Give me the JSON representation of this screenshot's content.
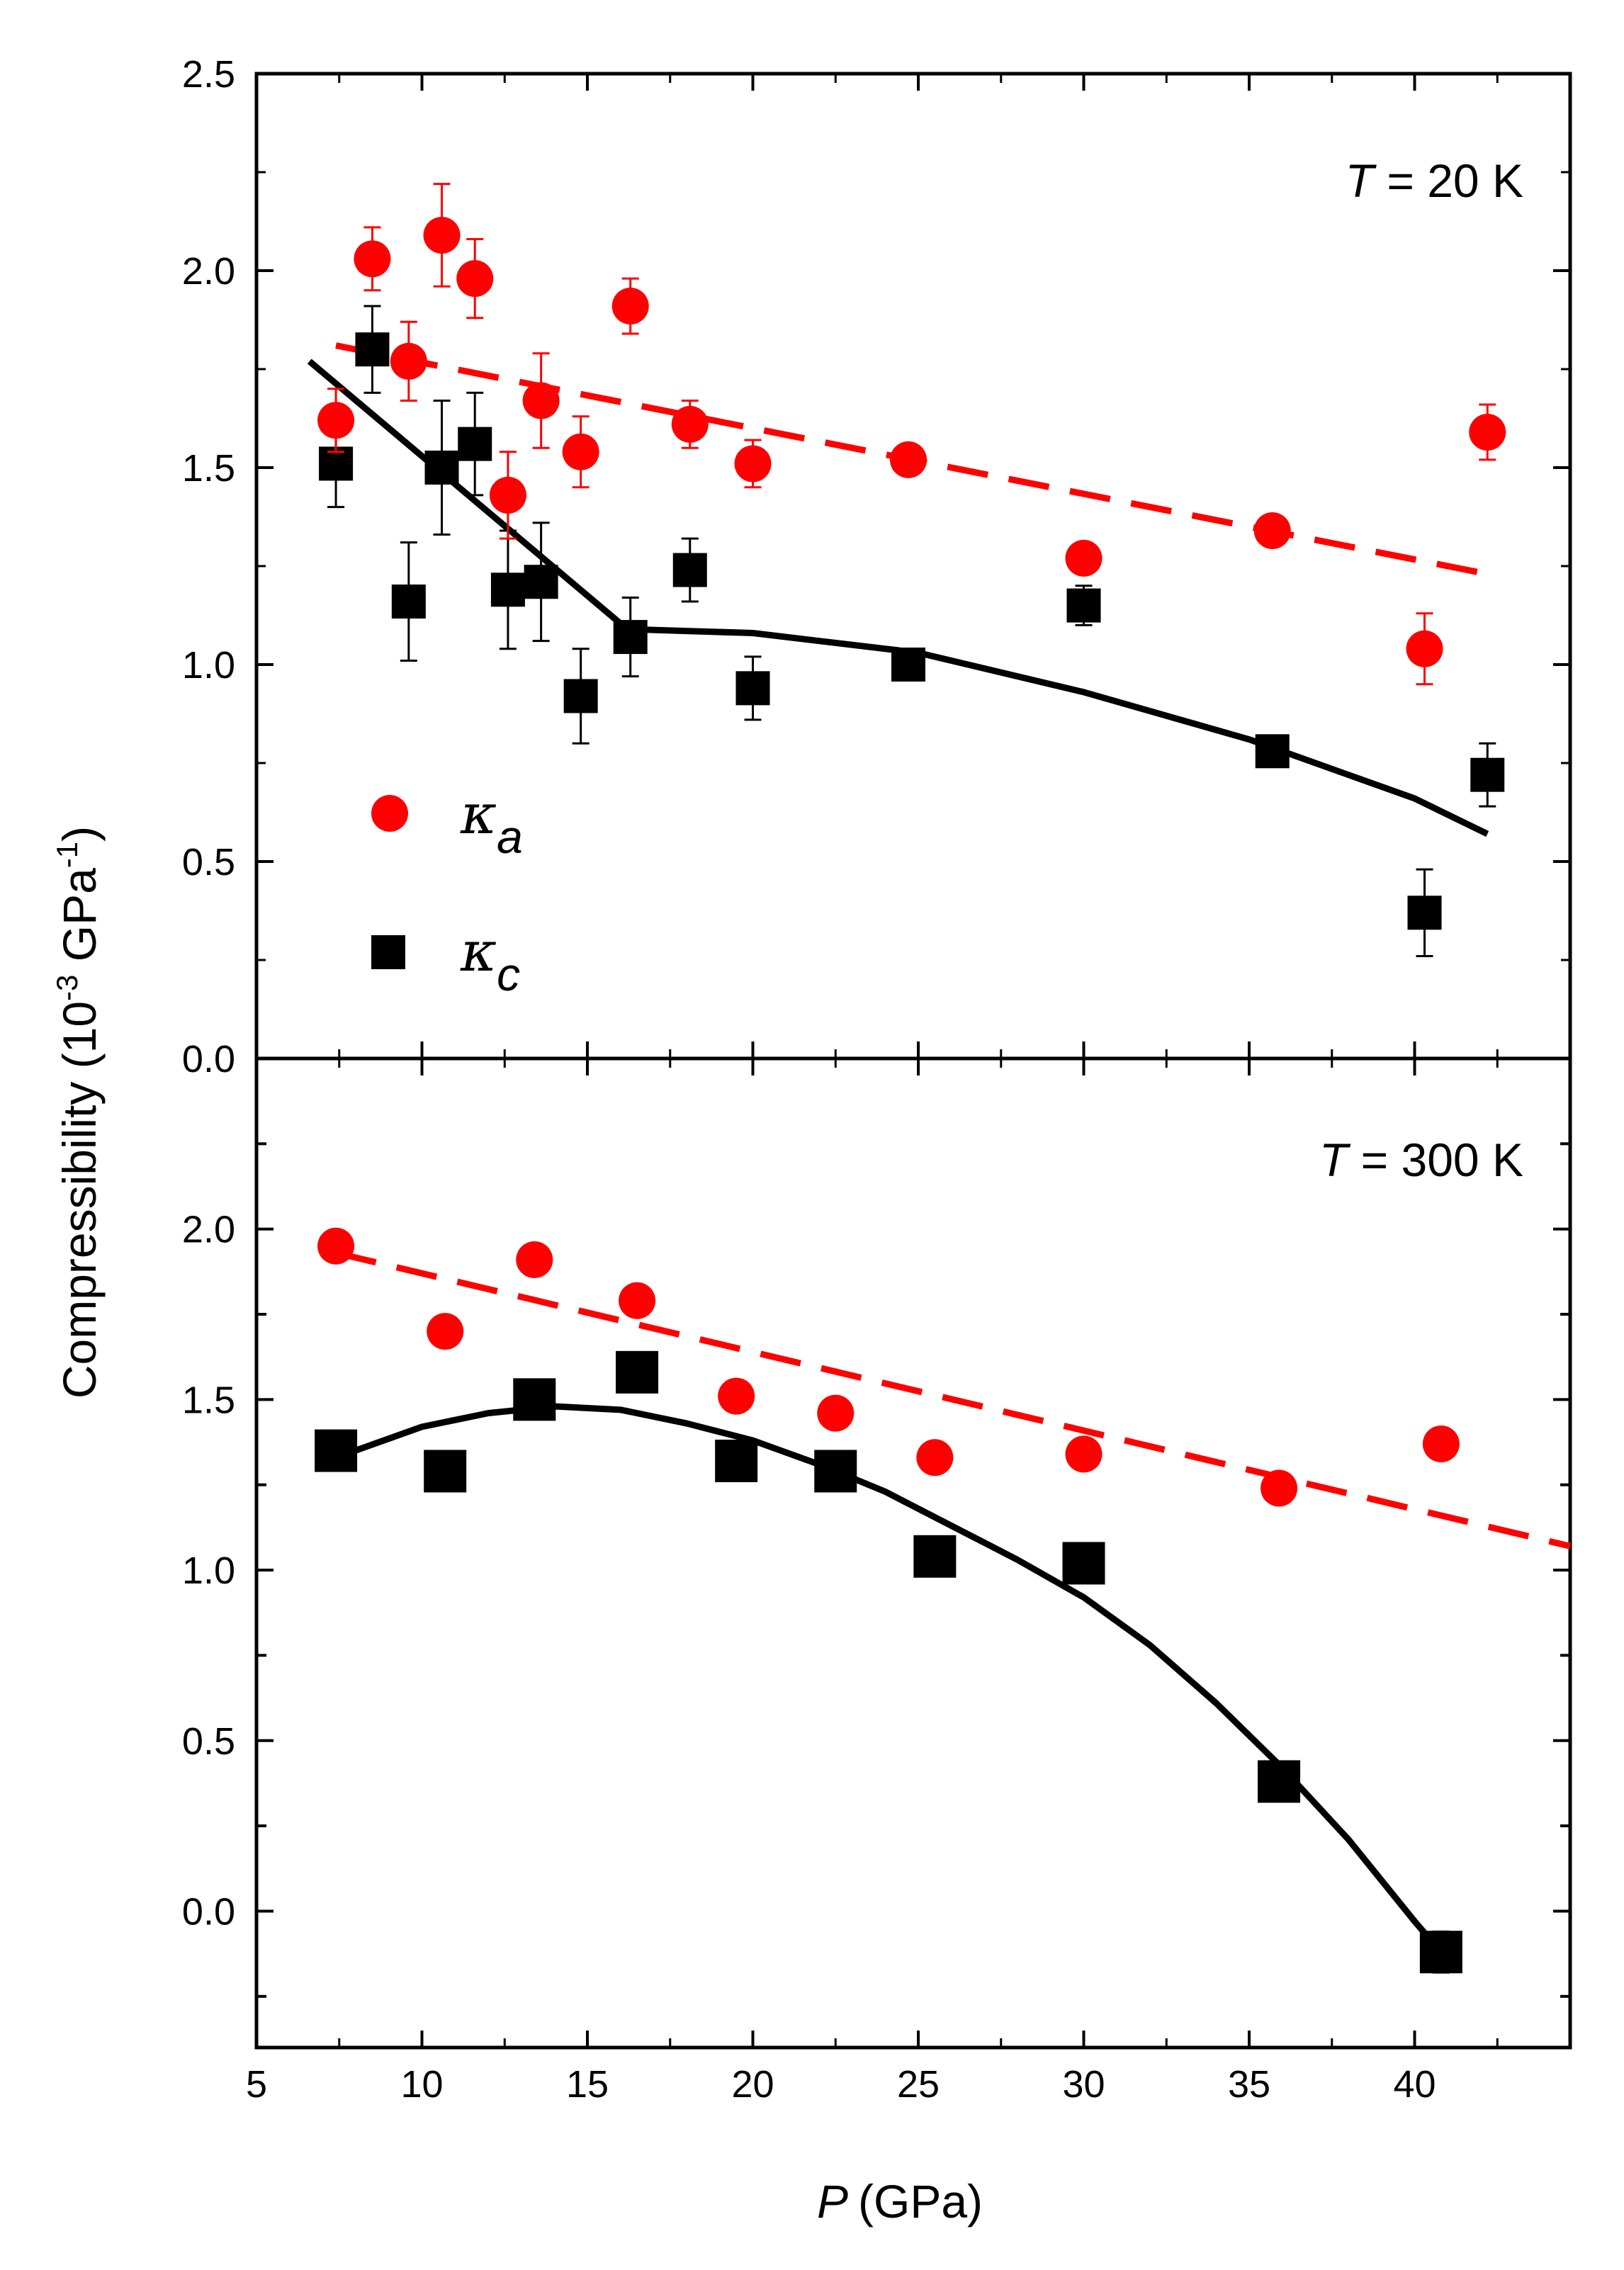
{
  "chart_data": {
    "type": "scatter",
    "xlabel_symbol": "P",
    "xlabel_unit": "(GPa)",
    "ylabel_main": "Compressibility (10",
    "ylabel_exp1": "-3",
    "ylabel_mid": " GPa",
    "ylabel_exp2": "-1",
    "ylabel_end": ")",
    "xlim": [
      5,
      44.7
    ],
    "x_ticks": [
      5,
      10,
      15,
      20,
      25,
      30,
      35,
      40
    ],
    "colors": {
      "kappa_a": "#ff0000",
      "kappa_c": "#000000"
    },
    "legend": {
      "kappa_a": {
        "symbol": "κ",
        "sub": "a"
      },
      "kappa_c": {
        "symbol": "κ",
        "sub": "c"
      }
    },
    "panels": [
      {
        "label_T": "T",
        "label_rest": " = 20 K",
        "ylim": [
          0,
          2.5
        ],
        "y_ticks": [
          0.0,
          0.5,
          1.0,
          1.5,
          2.0,
          2.5
        ],
        "y_tick_labels": [
          "0.0",
          "0.5",
          "1.0",
          "1.5",
          "2.0",
          "2.5"
        ],
        "series": [
          {
            "name": "kappa_a",
            "marker": "circle",
            "points": [
              {
                "x": 7.4,
                "y": 1.62,
                "err": 0.08
              },
              {
                "x": 8.5,
                "y": 2.03,
                "err": 0.08
              },
              {
                "x": 9.6,
                "y": 1.77,
                "err": 0.1
              },
              {
                "x": 10.6,
                "y": 2.09,
                "err": 0.13
              },
              {
                "x": 11.6,
                "y": 1.98,
                "err": 0.1
              },
              {
                "x": 12.6,
                "y": 1.43,
                "err": 0.11
              },
              {
                "x": 13.6,
                "y": 1.67,
                "err": 0.12
              },
              {
                "x": 14.8,
                "y": 1.54,
                "err": 0.09
              },
              {
                "x": 16.3,
                "y": 1.91,
                "err": 0.07
              },
              {
                "x": 18.1,
                "y": 1.61,
                "err": 0.06
              },
              {
                "x": 20.0,
                "y": 1.51,
                "err": 0.06
              },
              {
                "x": 24.7,
                "y": 1.52,
                "err": 0.0
              },
              {
                "x": 30.0,
                "y": 1.27,
                "err": 0.0
              },
              {
                "x": 35.7,
                "y": 1.34,
                "err": 0.0
              },
              {
                "x": 40.3,
                "y": 1.04,
                "err": 0.09
              },
              {
                "x": 42.2,
                "y": 1.59,
                "err": 0.07
              }
            ],
            "fit": {
              "style": "dashed",
              "x": [
                7.4,
                42.2
              ],
              "y": [
                1.81,
                1.23
              ]
            }
          },
          {
            "name": "kappa_c",
            "marker": "square",
            "points": [
              {
                "x": 7.4,
                "y": 1.51,
                "err": 0.11
              },
              {
                "x": 8.5,
                "y": 1.8,
                "err": 0.11
              },
              {
                "x": 9.6,
                "y": 1.16,
                "err": 0.15
              },
              {
                "x": 10.6,
                "y": 1.5,
                "err": 0.17
              },
              {
                "x": 11.6,
                "y": 1.56,
                "err": 0.13
              },
              {
                "x": 12.6,
                "y": 1.19,
                "err": 0.15
              },
              {
                "x": 13.6,
                "y": 1.21,
                "err": 0.15
              },
              {
                "x": 14.8,
                "y": 0.92,
                "err": 0.12
              },
              {
                "x": 16.3,
                "y": 1.07,
                "err": 0.1
              },
              {
                "x": 18.1,
                "y": 1.24,
                "err": 0.08
              },
              {
                "x": 20.0,
                "y": 0.94,
                "err": 0.08
              },
              {
                "x": 24.7,
                "y": 1.0,
                "err": 0.0
              },
              {
                "x": 30.0,
                "y": 1.15,
                "err": 0.05
              },
              {
                "x": 35.7,
                "y": 0.78,
                "err": 0.0
              },
              {
                "x": 40.3,
                "y": 0.37,
                "err": 0.11
              },
              {
                "x": 42.2,
                "y": 0.72,
                "err": 0.08
              }
            ],
            "fit": {
              "style": "solid",
              "x": [
                6.6,
                16.2,
                20,
                25,
                30,
                35,
                38,
                40,
                42.2
              ],
              "y": [
                1.77,
                1.09,
                1.08,
                1.03,
                0.93,
                0.81,
                0.72,
                0.66,
                0.57
              ]
            }
          }
        ]
      },
      {
        "label_T": "T",
        "label_rest": " = 300 K",
        "ylim": [
          -0.4,
          2.5
        ],
        "y_ticks": [
          -0.25,
          0.0,
          0.25,
          0.5,
          0.75,
          1.0,
          1.25,
          1.5,
          1.75,
          2.0,
          2.25
        ],
        "y_tick_labels": [
          "0.0",
          "0.5",
          "1.0",
          "1.5",
          "2.0"
        ],
        "y_tick_label_values": [
          0.0,
          0.5,
          1.0,
          1.5,
          2.0
        ],
        "series": [
          {
            "name": "kappa_a",
            "marker": "circle",
            "points": [
              {
                "x": 7.4,
                "y": 1.95
              },
              {
                "x": 10.7,
                "y": 1.7
              },
              {
                "x": 13.4,
                "y": 1.91
              },
              {
                "x": 16.5,
                "y": 1.79
              },
              {
                "x": 19.5,
                "y": 1.51
              },
              {
                "x": 22.5,
                "y": 1.46
              },
              {
                "x": 25.5,
                "y": 1.33
              },
              {
                "x": 30.0,
                "y": 1.34
              },
              {
                "x": 35.9,
                "y": 1.24
              },
              {
                "x": 40.8,
                "y": 1.37
              }
            ],
            "fit": {
              "style": "dashed",
              "x": [
                7.4,
                44.7
              ],
              "y": [
                1.93,
                1.07
              ]
            }
          },
          {
            "name": "kappa_c",
            "marker": "square",
            "points": [
              {
                "x": 7.4,
                "y": 1.35
              },
              {
                "x": 10.7,
                "y": 1.29
              },
              {
                "x": 13.4,
                "y": 1.5
              },
              {
                "x": 16.5,
                "y": 1.58
              },
              {
                "x": 19.5,
                "y": 1.32
              },
              {
                "x": 22.5,
                "y": 1.29
              },
              {
                "x": 25.5,
                "y": 1.04
              },
              {
                "x": 30.0,
                "y": 1.02
              },
              {
                "x": 35.9,
                "y": 0.38
              },
              {
                "x": 40.8,
                "y": -0.12,
                "err": 0.06
              }
            ],
            "fit": {
              "style": "solid",
              "x": [
                7.4,
                10,
                12,
                14,
                16,
                18,
                20,
                22,
                24,
                26,
                28,
                30,
                32,
                34,
                36,
                38,
                40,
                40.8
              ],
              "y": [
                1.33,
                1.42,
                1.46,
                1.48,
                1.47,
                1.43,
                1.38,
                1.31,
                1.23,
                1.13,
                1.03,
                0.92,
                0.78,
                0.61,
                0.42,
                0.21,
                -0.03,
                -0.12
              ]
            }
          }
        ]
      }
    ]
  }
}
